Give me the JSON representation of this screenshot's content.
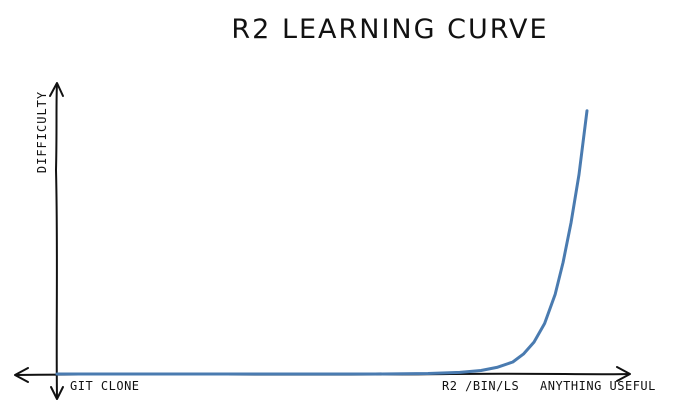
{
  "chart_data": {
    "type": "line",
    "title": "R2 LEARNING CURVE",
    "xlabel": "",
    "ylabel": "DIFFICULTY",
    "x_tick_labels": [
      "GIT CLONE",
      "R2 /BIN/LS",
      "ANYTHING USEFUL"
    ],
    "xlim": [
      0,
      1
    ],
    "ylim": [
      0,
      1
    ],
    "grid": false,
    "legend": "none",
    "series": [
      {
        "color": "#4a7bb0",
        "x": [
          0.0,
          0.2,
          0.4,
          0.6,
          0.7,
          0.76,
          0.8,
          0.83,
          0.86,
          0.88,
          0.9,
          0.92,
          0.94,
          0.955,
          0.97,
          0.985,
          1.0
        ],
        "y": [
          0.0,
          0.0,
          0.0,
          0.0,
          0.002,
          0.006,
          0.013,
          0.025,
          0.045,
          0.075,
          0.12,
          0.19,
          0.3,
          0.42,
          0.57,
          0.75,
          0.99
        ]
      }
    ]
  }
}
